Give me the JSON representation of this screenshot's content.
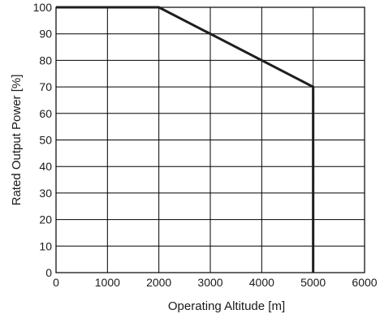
{
  "chart_data": {
    "type": "line",
    "title": "",
    "xlabel": "Operating Altitude [m]",
    "ylabel": "Rated Output Power [%]",
    "xlim": [
      0,
      6000
    ],
    "ylim": [
      0,
      100
    ],
    "grid": true,
    "x_ticks": [
      0,
      1000,
      2000,
      3000,
      4000,
      5000,
      6000
    ],
    "x_tick_labels": [
      "0",
      "1000",
      "2000",
      "3000",
      "4000",
      "5000",
      "6000"
    ],
    "y_ticks": [
      0,
      10,
      20,
      30,
      40,
      50,
      60,
      70,
      80,
      90,
      100
    ],
    "y_tick_labels": [
      "0",
      "10",
      "20",
      "30",
      "40",
      "50",
      "60",
      "70",
      "80",
      "90",
      "100"
    ],
    "series": [
      {
        "x": [
          0,
          2000,
          5000,
          5000
        ],
        "y": [
          100,
          100,
          70,
          0
        ]
      }
    ],
    "line_color": "#1e1e1e"
  }
}
